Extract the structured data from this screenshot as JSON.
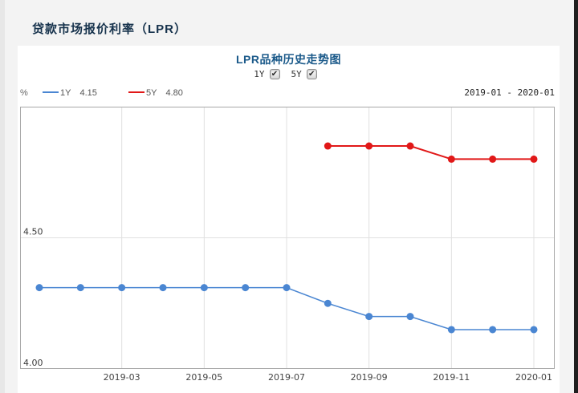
{
  "page": {
    "title": "贷款市场报价利率（LPR）"
  },
  "chart": {
    "title": "LPR品种历史走势图",
    "checkboxes": [
      {
        "label": "1Y",
        "checked": true
      },
      {
        "label": "5Y",
        "checked": true
      }
    ],
    "unit_label": "%",
    "date_range": "2019-01 - 2020-01",
    "legend": [
      {
        "name": "1Y",
        "value": "4.15",
        "color": "#4a86d2"
      },
      {
        "name": "5Y",
        "value": "4.80",
        "color": "#e11818"
      }
    ]
  },
  "chart_data": {
    "type": "line",
    "title": "LPR品种历史走势图",
    "x": [
      "2019-01",
      "2019-02",
      "2019-03",
      "2019-04",
      "2019-05",
      "2019-06",
      "2019-07",
      "2019-08",
      "2019-09",
      "2019-10",
      "2019-11",
      "2019-12",
      "2020-01"
    ],
    "series": [
      {
        "name": "1Y",
        "color": "#4a86d2",
        "line_width": 1.5,
        "values": [
          4.31,
          4.31,
          4.31,
          4.31,
          4.31,
          4.31,
          4.31,
          4.25,
          4.2,
          4.2,
          4.15,
          4.15,
          4.15
        ]
      },
      {
        "name": "5Y",
        "color": "#e11818",
        "line_width": 2,
        "values": [
          null,
          null,
          null,
          null,
          null,
          null,
          null,
          4.85,
          4.85,
          4.85,
          4.8,
          4.8,
          4.8
        ]
      }
    ],
    "xticks": [
      "2019-03",
      "2019-05",
      "2019-07",
      "2019-09",
      "2019-11",
      "2020-01"
    ],
    "yticks": [
      4.0,
      4.5
    ],
    "y_gridlines": [
      4.5
    ],
    "ylim": [
      4.0,
      5.0
    ],
    "xlabel": "",
    "ylabel": "%",
    "grid": true,
    "legend_position": "top-left",
    "marker_radius": 4.5,
    "colors": {
      "grid": "#e0e0e0",
      "border": "#a8a8a8",
      "tick_text": "#3a3a3a"
    }
  }
}
